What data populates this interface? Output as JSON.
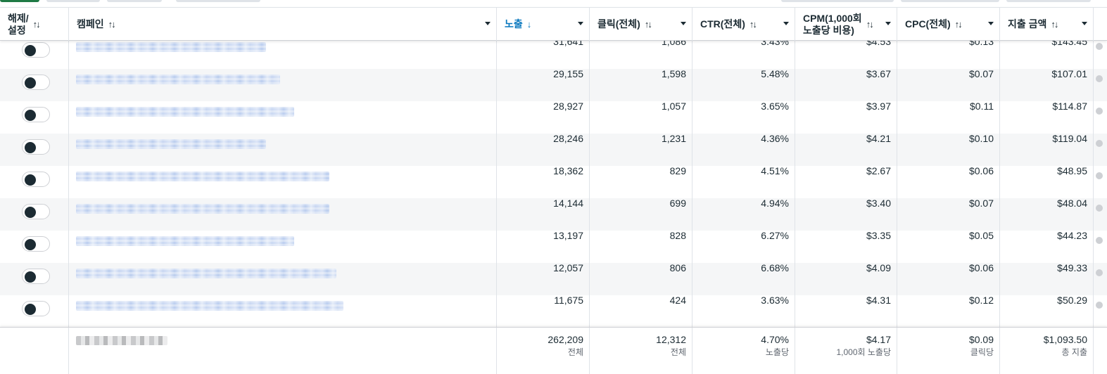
{
  "header": {
    "toggle_col": "해제/\n설정",
    "campaign_col": "캠페인",
    "impressions_col": "노출",
    "clicks_col": "클릭(전체)",
    "ctr_col": "CTR(전체)",
    "cpm_col": "CPM(1,000회\n노출당 비용)",
    "cpc_col": "CPC(전체)",
    "spend_col": "지출 금액",
    "sort_both": "↑↓",
    "sort_desc": "↓"
  },
  "rows": [
    {
      "impressions": "31,641",
      "clicks": "1,086",
      "ctr": "3.43%",
      "cpm": "$4.53",
      "cpc": "$0.13",
      "spend": "$143.45"
    },
    {
      "impressions": "29,155",
      "clicks": "1,598",
      "ctr": "5.48%",
      "cpm": "$3.67",
      "cpc": "$0.07",
      "spend": "$107.01"
    },
    {
      "impressions": "28,927",
      "clicks": "1,057",
      "ctr": "3.65%",
      "cpm": "$3.97",
      "cpc": "$0.11",
      "spend": "$114.87"
    },
    {
      "impressions": "28,246",
      "clicks": "1,231",
      "ctr": "4.36%",
      "cpm": "$4.21",
      "cpc": "$0.10",
      "spend": "$119.04"
    },
    {
      "impressions": "18,362",
      "clicks": "829",
      "ctr": "4.51%",
      "cpm": "$2.67",
      "cpc": "$0.06",
      "spend": "$48.95"
    },
    {
      "impressions": "14,144",
      "clicks": "699",
      "ctr": "4.94%",
      "cpm": "$3.40",
      "cpc": "$0.07",
      "spend": "$48.04"
    },
    {
      "impressions": "13,197",
      "clicks": "828",
      "ctr": "6.27%",
      "cpm": "$3.35",
      "cpc": "$0.05",
      "spend": "$44.23"
    },
    {
      "impressions": "12,057",
      "clicks": "806",
      "ctr": "6.68%",
      "cpm": "$4.09",
      "cpc": "$0.06",
      "spend": "$49.33"
    },
    {
      "impressions": "11,675",
      "clicks": "424",
      "ctr": "3.63%",
      "cpm": "$4.31",
      "cpc": "$0.12",
      "spend": "$50.29"
    }
  ],
  "totals": {
    "impressions": "262,209",
    "impressions_sub": "전체",
    "clicks": "12,312",
    "clicks_sub": "전체",
    "ctr": "4.70%",
    "ctr_sub": "노출당",
    "cpm": "$4.17",
    "cpm_sub": "1,000회 노출당",
    "cpc": "$0.09",
    "cpc_sub": "클릭당",
    "spend": "$1,093.50",
    "spend_sub": "총 지출"
  },
  "colors": {
    "accent": "#0a78be",
    "text": "#1c2b33",
    "row_alt": "#f5f6f7",
    "toggle_knob": "#1c2b33"
  }
}
